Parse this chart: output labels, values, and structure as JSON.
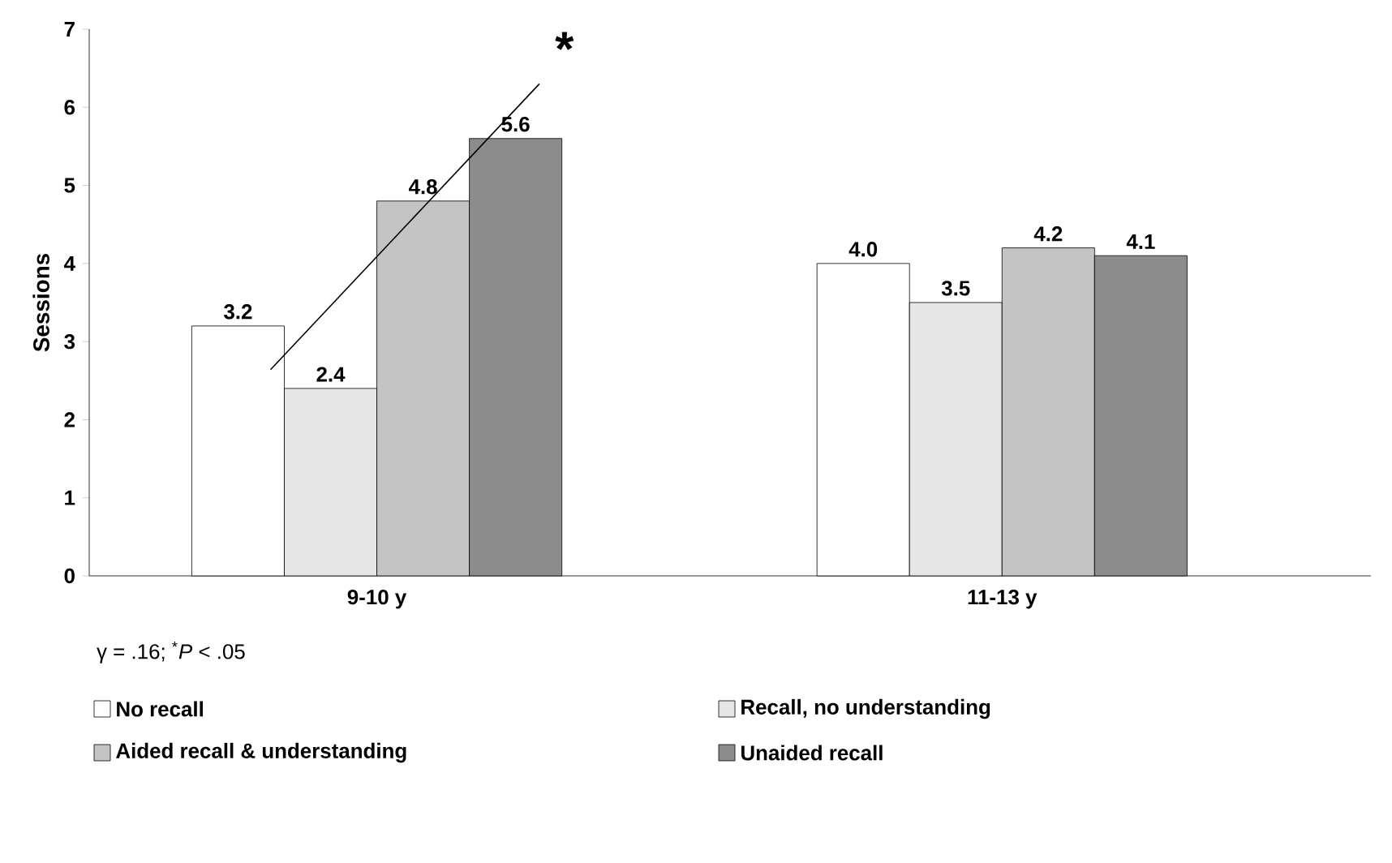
{
  "chart_data": {
    "type": "bar",
    "ylabel": "Sessions",
    "categories": [
      "9-10 y",
      "11-13 y"
    ],
    "series": [
      {
        "name": "No recall",
        "color": "#ffffff",
        "values": [
          3.2,
          4.0
        ],
        "value_labels": [
          "3.2",
          "4.0"
        ]
      },
      {
        "name": "Recall, no understanding",
        "color": "#e6e6e6",
        "values": [
          2.4,
          3.5
        ],
        "value_labels": [
          "2.4",
          "3.5"
        ]
      },
      {
        "name": "Aided recall & understanding",
        "color": "#c4c4c4",
        "values": [
          4.8,
          4.2
        ],
        "value_labels": [
          "4.8",
          "4.2"
        ]
      },
      {
        "name": "Unaided recall",
        "color": "#8c8c8c",
        "values": [
          5.6,
          4.1
        ],
        "value_labels": [
          "5.6",
          "4.1"
        ]
      }
    ],
    "ylim": [
      0,
      7
    ],
    "yticks": [
      0,
      1,
      2,
      3,
      4,
      5,
      6,
      7
    ],
    "legend": "bottom",
    "grid": false,
    "annotations": [
      "*",
      "γ = .16; $^{*}$*P* < .05"
    ]
  }
}
